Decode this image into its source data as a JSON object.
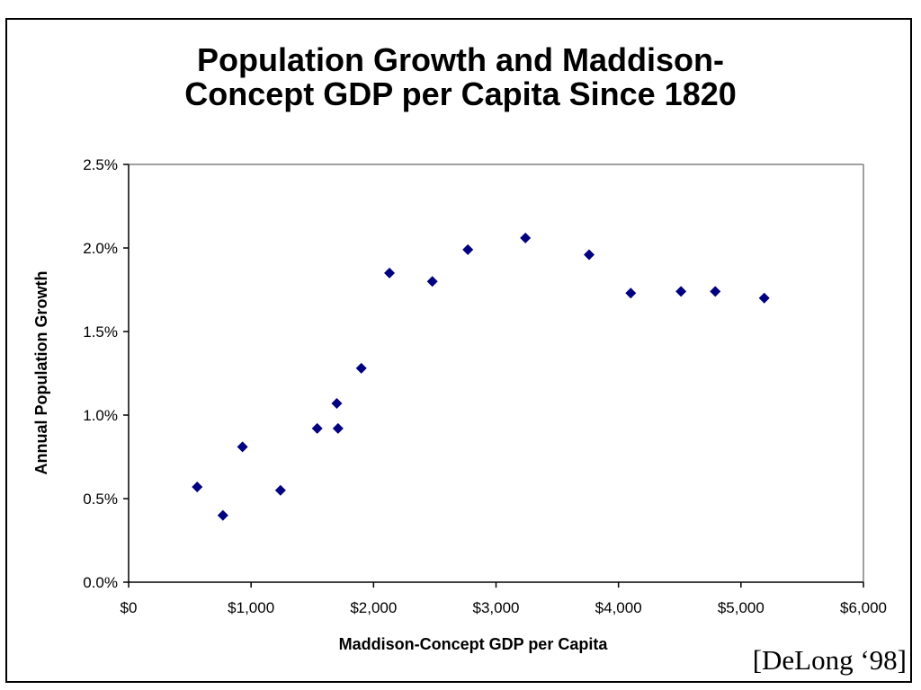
{
  "chart_data": {
    "type": "scatter",
    "title": [
      "Population Growth and Maddison-",
      "Concept GDP per Capita Since 1820"
    ],
    "xlabel": "Maddison-Concept GDP per Capita",
    "ylabel": "Annual Population Growth",
    "xlim": [
      0,
      6000
    ],
    "ylim": [
      0,
      0.025
    ],
    "x_ticks": [
      "$0",
      "$1,000",
      "$2,000",
      "$3,000",
      "$4,000",
      "$5,000",
      "$6,000"
    ],
    "y_ticks": [
      "0.0%",
      "0.5%",
      "1.0%",
      "1.5%",
      "2.0%",
      "2.5%"
    ],
    "grid": false,
    "legend": "none",
    "marker": "diamond",
    "marker_color": "#000080",
    "points": [
      {
        "x": 560,
        "y": 0.0057
      },
      {
        "x": 770,
        "y": 0.004
      },
      {
        "x": 930,
        "y": 0.0081
      },
      {
        "x": 1240,
        "y": 0.0055
      },
      {
        "x": 1540,
        "y": 0.0092
      },
      {
        "x": 1700,
        "y": 0.0107
      },
      {
        "x": 1710,
        "y": 0.0092
      },
      {
        "x": 1900,
        "y": 0.0128
      },
      {
        "x": 2130,
        "y": 0.0185
      },
      {
        "x": 2480,
        "y": 0.018
      },
      {
        "x": 2770,
        "y": 0.0199
      },
      {
        "x": 3240,
        "y": 0.0206
      },
      {
        "x": 3760,
        "y": 0.0196
      },
      {
        "x": 4100,
        "y": 0.0173
      },
      {
        "x": 4510,
        "y": 0.0174
      },
      {
        "x": 4790,
        "y": 0.0174
      },
      {
        "x": 5190,
        "y": 0.017
      }
    ]
  },
  "credit": "[DeLong ‘98]"
}
